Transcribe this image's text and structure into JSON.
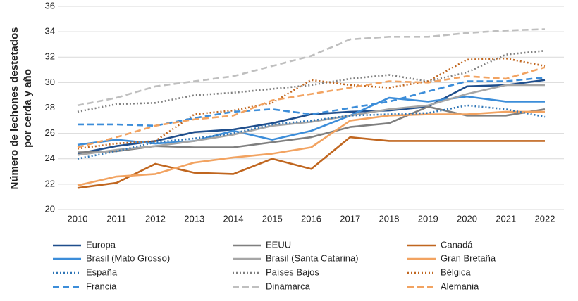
{
  "chart_data": {
    "type": "line",
    "ylabel": [
      "Número de lechones destetados",
      "por cerda y año"
    ],
    "x": [
      2010,
      2011,
      2012,
      2013,
      2014,
      2015,
      2016,
      2017,
      2018,
      2019,
      2020,
      2021,
      2022
    ],
    "ylim": [
      20,
      36
    ],
    "yticks": [
      20,
      22,
      24,
      26,
      28,
      30,
      32,
      34,
      36
    ],
    "grid": true,
    "series": [
      {
        "name": "Europa",
        "color": "#1f4e8c",
        "dash": "solid",
        "values": [
          24.4,
          25.0,
          25.4,
          26.1,
          26.3,
          26.8,
          27.5,
          27.7,
          27.8,
          28.1,
          29.7,
          29.8,
          30.2
        ]
      },
      {
        "name": "EEUU",
        "color": "#7f7f7f",
        "dash": "solid",
        "values": [
          24.5,
          24.6,
          25.0,
          24.9,
          24.9,
          25.3,
          25.7,
          26.5,
          26.8,
          28.1,
          27.4,
          27.4,
          27.9
        ]
      },
      {
        "name": "Canadá",
        "color": "#c0661f",
        "dash": "solid",
        "values": [
          21.7,
          22.1,
          23.6,
          22.9,
          22.8,
          24.0,
          23.2,
          25.7,
          25.4,
          25.4,
          25.4,
          25.4,
          25.4
        ]
      },
      {
        "name": "Brasil (Mato Grosso)",
        "color": "#3c8dd9",
        "dash": "solid",
        "values": [
          25.1,
          25.5,
          25.2,
          25.4,
          26.2,
          25.5,
          26.2,
          27.4,
          28.8,
          28.5,
          28.9,
          28.5,
          28.5
        ]
      },
      {
        "name": "Brasil (Santa Catarina)",
        "color": "#a6a6a6",
        "dash": "solid",
        "values": [
          24.3,
          24.7,
          25.0,
          25.4,
          25.9,
          26.6,
          26.9,
          27.4,
          27.9,
          28.2,
          29.1,
          29.8,
          29.8
        ]
      },
      {
        "name": "Gran Bretaña",
        "color": "#f2a361",
        "dash": "solid",
        "values": [
          21.9,
          22.6,
          22.8,
          23.7,
          24.1,
          24.4,
          24.9,
          27.0,
          27.4,
          27.5,
          27.5,
          27.7,
          27.7
        ]
      },
      {
        "name": "España",
        "color": "#2e75b6",
        "dash": "dotted",
        "values": [
          24.0,
          24.6,
          25.3,
          25.6,
          26.0,
          26.7,
          27.0,
          27.4,
          27.5,
          27.6,
          28.2,
          27.9,
          27.3
        ]
      },
      {
        "name": "Países Bajos",
        "color": "#7f7f7f",
        "dash": "dotted",
        "values": [
          27.7,
          28.3,
          28.4,
          29.0,
          29.2,
          29.5,
          29.8,
          30.3,
          30.6,
          30.1,
          30.8,
          32.2,
          32.5
        ]
      },
      {
        "name": "Bélgica",
        "color": "#c0661f",
        "dash": "dotted",
        "values": [
          24.8,
          25.2,
          25.4,
          27.5,
          27.8,
          28.4,
          30.2,
          29.8,
          29.6,
          30.1,
          31.8,
          31.9,
          31.3
        ]
      },
      {
        "name": "Francia",
        "color": "#3c8dd9",
        "dash": "dashed",
        "values": [
          26.7,
          26.7,
          26.6,
          27.2,
          27.7,
          27.9,
          27.5,
          28.0,
          28.5,
          29.3,
          30.1,
          30.1,
          30.4
        ]
      },
      {
        "name": "Dinamarca",
        "color": "#bfbfbf",
        "dash": "dashed",
        "values": [
          28.2,
          28.8,
          29.7,
          30.1,
          30.5,
          31.3,
          32.1,
          33.4,
          33.6,
          33.6,
          33.9,
          34.1,
          34.2
        ]
      },
      {
        "name": "Alemania",
        "color": "#f2a361",
        "dash": "dashed",
        "values": [
          24.9,
          25.7,
          26.6,
          27.1,
          27.4,
          28.6,
          29.1,
          29.6,
          30.1,
          30.0,
          30.5,
          30.3,
          31.2
        ]
      }
    ]
  }
}
